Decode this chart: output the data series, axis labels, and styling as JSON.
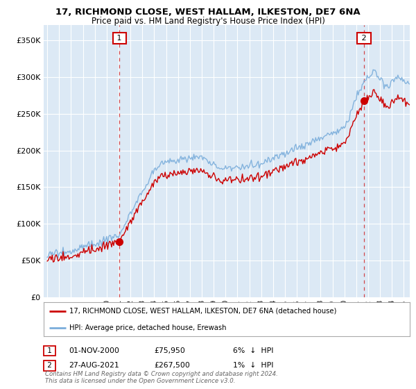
{
  "title_line1": "17, RICHMOND CLOSE, WEST HALLAM, ILKESTON, DE7 6NA",
  "title_line2": "Price paid vs. HM Land Registry's House Price Index (HPI)",
  "ylim": [
    0,
    370000
  ],
  "yticks": [
    0,
    50000,
    100000,
    150000,
    200000,
    250000,
    300000,
    350000
  ],
  "ytick_labels": [
    "£0",
    "£50K",
    "£100K",
    "£150K",
    "£200K",
    "£250K",
    "£300K",
    "£350K"
  ],
  "background_color": "#ffffff",
  "plot_bg_color": "#dce9f5",
  "grid_color": "#ffffff",
  "red_color": "#cc0000",
  "blue_color": "#7aaddb",
  "sale1_date_num": 2001.08,
  "sale1_price": 75950,
  "sale2_date_num": 2021.65,
  "sale2_price": 267500,
  "legend_line1": "17, RICHMOND CLOSE, WEST HALLAM, ILKESTON, DE7 6NA (detached house)",
  "legend_line2": "HPI: Average price, detached house, Erewash",
  "footer": "Contains HM Land Registry data © Crown copyright and database right 2024.\nThis data is licensed under the Open Government Licence v3.0.",
  "xmin": 1994.7,
  "xmax": 2025.5
}
